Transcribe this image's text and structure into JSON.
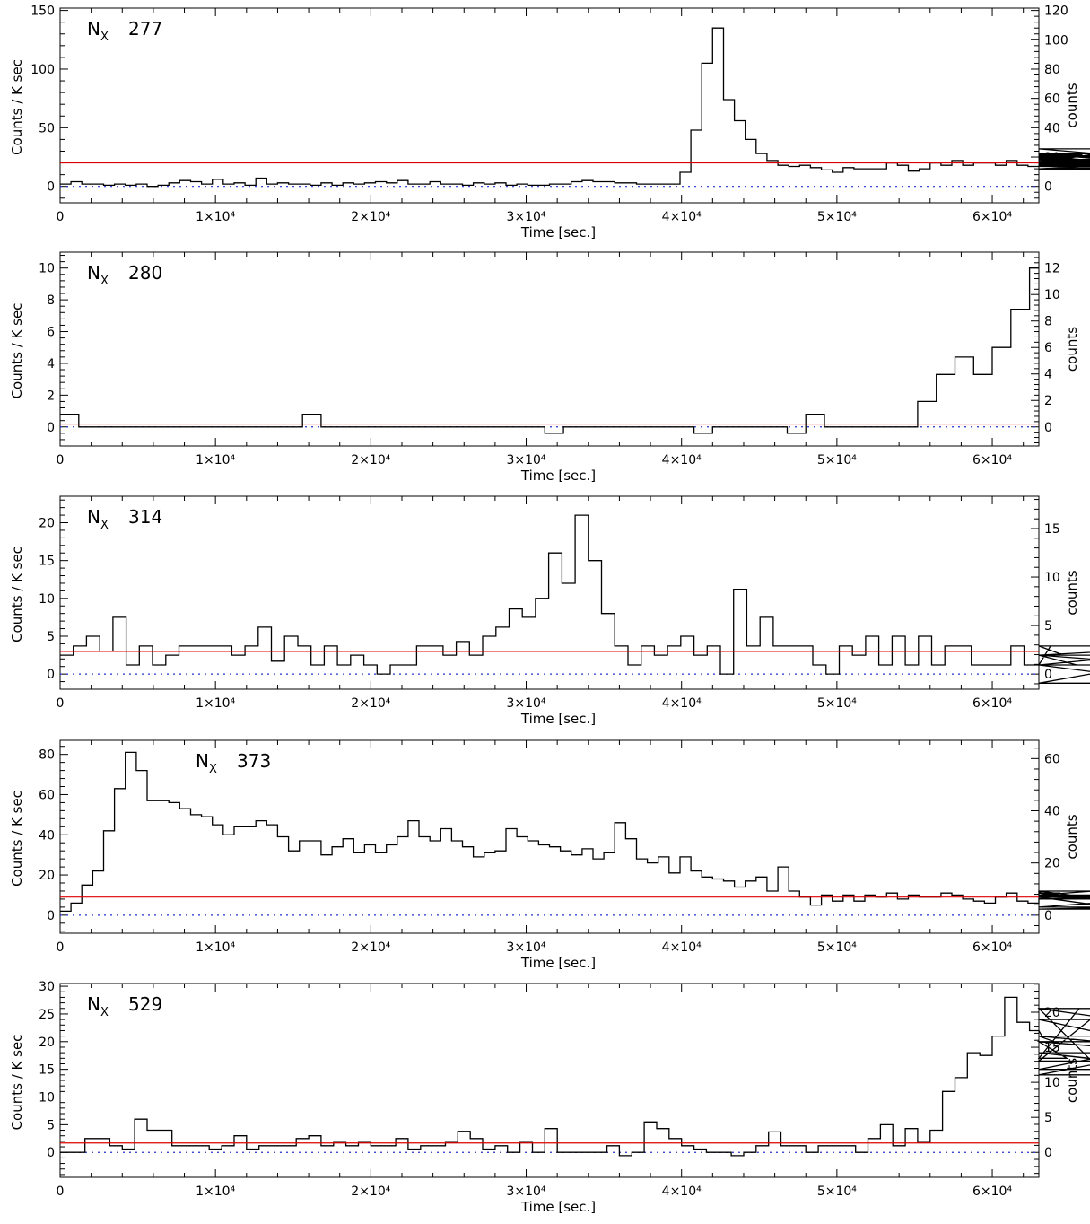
{
  "chart_data": [
    {
      "type": "line",
      "label_prefix": "N",
      "label_sub": "X",
      "label_id": "277",
      "xlabel": "Time [sec.]",
      "ylabel": "Counts / K sec",
      "y2label": "counts",
      "xlim": [
        0,
        63000
      ],
      "xticks": [
        "0",
        "1×10⁴",
        "2×10⁴",
        "3×10⁴",
        "4×10⁴",
        "5×10⁴",
        "6×10⁴"
      ],
      "ylim": [
        -14,
        152
      ],
      "yticks": [
        0,
        50,
        100,
        150
      ],
      "y2ticks": [
        0,
        20,
        40,
        60,
        80,
        100,
        120
      ],
      "y2_per_y1": 0.8,
      "bin_width": 700,
      "values": [
        2,
        4,
        2,
        2,
        1,
        2,
        1,
        2,
        0,
        1,
        3,
        5,
        4,
        2,
        6,
        2,
        3,
        1,
        7,
        2,
        3,
        2,
        2,
        1,
        3,
        1,
        3,
        2,
        3,
        4,
        3,
        5,
        2,
        2,
        4,
        2,
        2,
        1,
        3,
        2,
        3,
        1,
        2,
        1,
        1,
        2,
        2,
        4,
        5,
        4,
        4,
        3,
        3,
        2,
        2,
        2,
        2,
        12,
        48,
        105,
        135,
        74,
        56,
        40,
        28,
        22,
        18,
        17,
        18,
        16,
        14,
        12,
        16,
        15,
        15,
        15,
        20,
        18,
        13,
        15,
        20,
        18,
        22,
        18,
        20,
        20,
        18,
        22,
        18,
        17,
        17,
        20,
        18,
        24,
        27,
        28,
        23,
        20,
        32,
        25,
        19,
        18,
        28,
        18,
        26,
        14,
        15,
        22,
        17,
        15,
        17,
        23,
        20,
        20,
        18,
        20,
        20,
        20,
        19,
        21,
        19,
        17
      ],
      "baseline": 20,
      "zero_line": 0
    },
    {
      "type": "line",
      "label_prefix": "N",
      "label_sub": "X",
      "label_id": "280",
      "xlabel": "Time [sec.]",
      "ylabel": "Counts / K sec",
      "y2label": "counts",
      "xlim": [
        0,
        63000
      ],
      "xticks": [
        "0",
        "1×10⁴",
        "2×10⁴",
        "3×10⁴",
        "4×10⁴",
        "5×10⁴",
        "6×10⁴"
      ],
      "ylim": [
        -1.2,
        11
      ],
      "yticks": [
        0,
        2,
        4,
        6,
        8,
        10
      ],
      "y2ticks": [
        0,
        2,
        4,
        6,
        8,
        10,
        12
      ],
      "y2_per_y1": 1.2,
      "bin_width": 1200,
      "values": [
        0.8,
        0,
        0,
        0,
        0,
        0,
        0,
        0,
        0,
        0,
        0,
        0,
        0,
        0.8,
        0,
        0,
        0,
        0,
        0,
        0,
        0,
        0,
        0,
        0,
        0,
        0,
        -0.4,
        0,
        0,
        0,
        0,
        0,
        0,
        0,
        -0.4,
        0,
        0,
        0,
        0,
        -0.4,
        0.8,
        0,
        0,
        0,
        0,
        0,
        1.6,
        3.3,
        4.4,
        3.3,
        5,
        7.4,
        10
      ],
      "baseline": 0.18,
      "zero_line": 0
    },
    {
      "type": "line",
      "label_prefix": "N",
      "label_sub": "X",
      "label_id": "314",
      "xlabel": "Time [sec.]",
      "ylabel": "Counts / K sec",
      "y2label": "counts",
      "xlim": [
        0,
        63000
      ],
      "xticks": [
        "0",
        "1×10⁴",
        "2×10⁴",
        "3×10⁴",
        "4×10⁴",
        "5×10⁴",
        "6×10⁴"
      ],
      "ylim": [
        -2,
        23.5
      ],
      "yticks": [
        0,
        5,
        10,
        15,
        20
      ],
      "y2ticks": [
        0,
        5,
        10,
        15
      ],
      "y2_per_y1": 0.78,
      "bin_width": 850,
      "values": [
        2.5,
        3.7,
        5,
        3,
        7.5,
        1.2,
        3.7,
        1.2,
        2.5,
        3.7,
        3.7,
        3.7,
        3.7,
        2.5,
        3.7,
        6.2,
        1.7,
        5,
        3.7,
        1.2,
        3.7,
        1.2,
        2.5,
        1.2,
        0,
        1.2,
        1.2,
        3.7,
        3.7,
        2.5,
        4.3,
        2.5,
        5,
        6.2,
        8.6,
        7.5,
        10,
        16,
        12,
        21,
        15,
        8,
        3.7,
        1.2,
        3.7,
        2.5,
        3.7,
        5,
        2.5,
        3.7,
        0,
        11.2,
        3.7,
        7.5,
        3.7,
        3.7,
        3.7,
        1.2,
        0,
        3.7,
        2.5,
        5,
        1.2,
        5,
        1.2,
        5,
        1.2,
        3.7,
        3.7,
        1.2,
        1.2,
        1.2,
        3.7,
        1.2,
        1.2,
        3.7,
        2.5,
        1.2,
        1.2,
        1.2,
        1.2,
        1.2,
        2.5,
        2.5,
        1.2,
        -1.2,
        2.5,
        3.7
      ],
      "baseline": 3,
      "zero_line": 0
    },
    {
      "type": "line",
      "label_prefix": "N",
      "label_sub": "X",
      "label_id": "373",
      "xlabel": "Time [sec.]",
      "ylabel": "Counts / K sec",
      "y2label": "counts",
      "xlim": [
        0,
        63000
      ],
      "xticks": [
        "0",
        "1×10⁴",
        "2×10⁴",
        "3×10⁴",
        "4×10⁴",
        "5×10⁴",
        "6×10⁴"
      ],
      "ylim": [
        -9,
        87
      ],
      "yticks": [
        0,
        20,
        40,
        60,
        80
      ],
      "y2ticks": [
        0,
        20,
        40,
        60
      ],
      "y2_per_y1": 0.77,
      "bin_width": 700,
      "values": [
        2,
        6,
        15,
        22,
        42,
        63,
        81,
        72,
        57,
        57,
        56,
        53,
        50,
        49,
        45,
        40,
        44,
        44,
        47,
        45,
        39,
        32,
        37,
        37,
        30,
        34,
        38,
        31,
        35,
        31,
        35,
        39,
        47,
        39,
        37,
        43,
        37,
        34,
        29,
        31,
        32,
        43,
        39,
        37,
        35,
        34,
        32,
        30,
        33,
        28,
        31,
        46,
        38,
        28,
        26,
        29,
        21,
        29,
        22,
        19,
        18,
        17,
        14,
        17,
        19,
        12,
        24,
        12,
        9,
        5,
        10,
        7,
        10,
        7,
        10,
        9,
        11,
        8,
        10,
        9,
        9,
        11,
        10,
        8,
        7,
        6,
        9,
        11,
        7,
        6,
        12,
        8,
        11,
        9,
        10,
        12,
        8,
        9,
        3,
        4,
        8,
        10,
        8
      ],
      "baseline": 9,
      "zero_line": 0
    },
    {
      "type": "line",
      "label_prefix": "N",
      "label_sub": "X",
      "label_id": "529",
      "xlabel": "Time [sec.]",
      "ylabel": "Counts / K sec",
      "y2label": "counts",
      "xlim": [
        0,
        63000
      ],
      "xticks": [
        "0",
        "1×10⁴",
        "2×10⁴",
        "3×10⁴",
        "4×10⁴",
        "5×10⁴",
        "6×10⁴"
      ],
      "ylim": [
        -4.5,
        30.5
      ],
      "yticks": [
        0,
        5,
        10,
        15,
        20,
        25,
        30
      ],
      "y2ticks": [
        0,
        5,
        10,
        15,
        20
      ],
      "y2_per_y1": 0.79,
      "bin_width": 800,
      "values": [
        0,
        0,
        2.5,
        2.5,
        1.2,
        0.6,
        6,
        4,
        4,
        1.2,
        1.2,
        1.2,
        0.6,
        1.2,
        3,
        0.6,
        1.2,
        1.2,
        1.2,
        2.5,
        3,
        1.2,
        1.8,
        1.2,
        1.8,
        1.2,
        1.2,
        2.5,
        0.6,
        1.2,
        1.2,
        1.8,
        3.8,
        2.5,
        0.6,
        1.2,
        0,
        1.8,
        0,
        4.3,
        0,
        0,
        0,
        0,
        1.2,
        -0.6,
        0,
        5.5,
        4.3,
        2.5,
        1.2,
        0.6,
        0,
        0,
        -0.6,
        0,
        1.2,
        3.7,
        1.2,
        1.2,
        0,
        1.2,
        1.2,
        1.2,
        0,
        2.5,
        5,
        1.2,
        4.3,
        1.8,
        4,
        11,
        13.5,
        18,
        17.5,
        21,
        28,
        23.5,
        22,
        21,
        20,
        17,
        26,
        16.5,
        26,
        24,
        24,
        20,
        20,
        20,
        18,
        15,
        21,
        18,
        14,
        21
      ],
      "baseline": 1.7,
      "zero_line": 0
    }
  ]
}
